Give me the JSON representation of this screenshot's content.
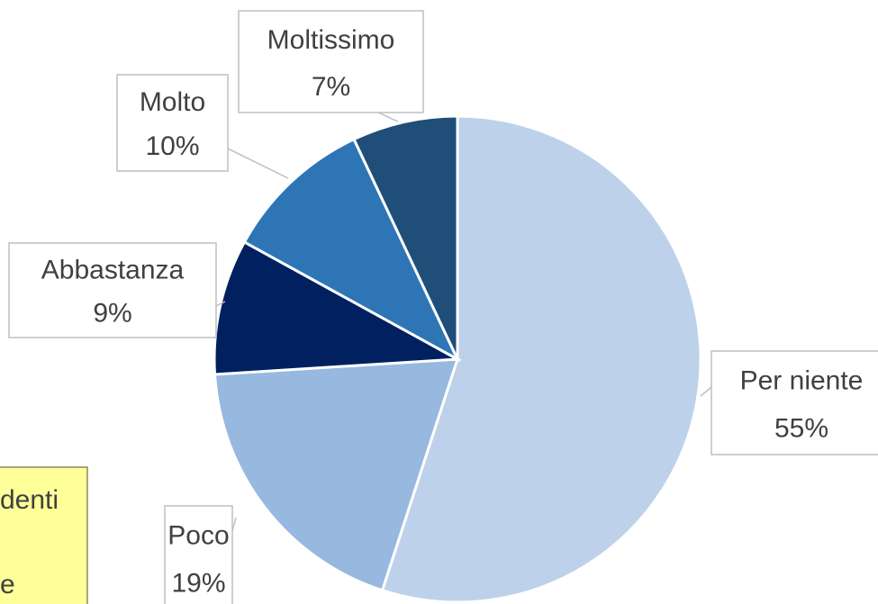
{
  "chart_data": {
    "type": "pie",
    "categories": [
      "Per niente",
      "Poco",
      "Abbastanza",
      "Molto",
      "Moltissimo"
    ],
    "values": [
      55,
      19,
      9,
      10,
      7
    ],
    "value_labels": [
      "55%",
      "19%",
      "9%",
      "10%",
      "7%"
    ],
    "colors": [
      "#bdd1ea",
      "#97b8df",
      "#002060",
      "#2e75b6",
      "#1f4e79"
    ],
    "annotations": [
      "denti",
      "e"
    ]
  }
}
